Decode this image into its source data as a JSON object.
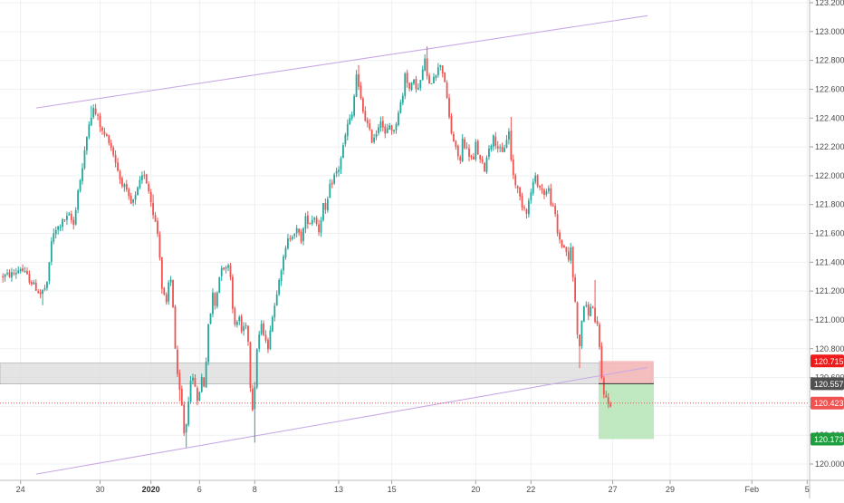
{
  "colors": {
    "up": "#26a69a",
    "down": "#ef5350",
    "channel_line": "#c9a9e6",
    "zone_fill": "#d9d9d9",
    "stop_zone": "#f7b7b7",
    "target_zone": "#b6e5b6",
    "grid": "#eef0f3",
    "axis_text": "#4a4a4a",
    "current_price_line": "#ef5350",
    "badge_red": "#ef1b1b",
    "badge_dark": "#505050",
    "badge_red_price": "#f05252",
    "badge_green": "#1e9e3e"
  },
  "chart_data": {
    "type": "candlestick",
    "title": "",
    "ylim": [
      119.86,
      123.2
    ],
    "y_ticks": [
      "120.000",
      "120.200",
      "120.400",
      "120.600",
      "120.800",
      "121.000",
      "121.200",
      "121.400",
      "121.600",
      "121.800",
      "122.000",
      "122.200",
      "122.400",
      "122.600",
      "122.800",
      "123.000",
      "123.200"
    ],
    "x_ticks": [
      {
        "label": "24",
        "i": 2,
        "bold": false
      },
      {
        "label": "30",
        "i": 38,
        "bold": false
      },
      {
        "label": "2020",
        "i": 61,
        "bold": true
      },
      {
        "label": "6",
        "i": 83,
        "bold": false
      },
      {
        "label": "8",
        "i": 108,
        "bold": false
      },
      {
        "label": "13",
        "i": 146,
        "bold": false
      },
      {
        "label": "15",
        "i": 170,
        "bold": false
      },
      {
        "label": "20",
        "i": 208,
        "bold": false
      },
      {
        "label": "22",
        "i": 233,
        "bold": false
      },
      {
        "label": "27",
        "i": 270,
        "bold": false
      },
      {
        "label": "29",
        "i": 296,
        "bold": false
      },
      {
        "label": "Feb",
        "i": 333,
        "bold": false
      },
      {
        "label": "5",
        "i": 358,
        "bold": false
      }
    ],
    "index_range": [
      -6,
      375
    ],
    "anchors": [
      [
        -6,
        121.3
      ],
      [
        0,
        121.32
      ],
      [
        3,
        121.36
      ],
      [
        8,
        121.26
      ],
      [
        12,
        121.18
      ],
      [
        15,
        121.24
      ],
      [
        17,
        121.55
      ],
      [
        19,
        121.62
      ],
      [
        22,
        121.68
      ],
      [
        25,
        121.72
      ],
      [
        27,
        121.66
      ],
      [
        29,
        121.9
      ],
      [
        31,
        122.05
      ],
      [
        34,
        122.38
      ],
      [
        36,
        122.46
      ],
      [
        38,
        122.4
      ],
      [
        40,
        122.3
      ],
      [
        43,
        122.25
      ],
      [
        46,
        122.1
      ],
      [
        48,
        121.98
      ],
      [
        50,
        121.92
      ],
      [
        53,
        121.8
      ],
      [
        55,
        121.85
      ],
      [
        57,
        121.95
      ],
      [
        59,
        122.02
      ],
      [
        61,
        121.9
      ],
      [
        63,
        121.75
      ],
      [
        65,
        121.6
      ],
      [
        66,
        121.45
      ],
      [
        67,
        121.22
      ],
      [
        69,
        121.1
      ],
      [
        70,
        121.25
      ],
      [
        71,
        121.28
      ],
      [
        72,
        121.1
      ],
      [
        73,
        120.8
      ],
      [
        74,
        120.6
      ],
      [
        76,
        120.4
      ],
      [
        77,
        120.22
      ],
      [
        78,
        120.28
      ],
      [
        79,
        120.45
      ],
      [
        80,
        120.6
      ],
      [
        82,
        120.55
      ],
      [
        83,
        120.42
      ],
      [
        85,
        120.6
      ],
      [
        86,
        120.55
      ],
      [
        87,
        120.72
      ],
      [
        88,
        120.95
      ],
      [
        89,
        121.05
      ],
      [
        90,
        121.18
      ],
      [
        91,
        121.1
      ],
      [
        93,
        121.3
      ],
      [
        94,
        121.38
      ],
      [
        96,
        121.35
      ],
      [
        97,
        121.4
      ],
      [
        98,
        121.3
      ],
      [
        99,
        121.1
      ],
      [
        100,
        120.95
      ],
      [
        102,
        121.02
      ],
      [
        103,
        120.92
      ],
      [
        105,
        120.98
      ],
      [
        106,
        120.85
      ],
      [
        107,
        120.55
      ],
      [
        108,
        120.4
      ],
      [
        109,
        120.55
      ],
      [
        110,
        120.8
      ],
      [
        111,
        120.9
      ],
      [
        112,
        120.95
      ],
      [
        114,
        120.88
      ],
      [
        115,
        120.78
      ],
      [
        116,
        120.95
      ],
      [
        118,
        121.1
      ],
      [
        120,
        121.3
      ],
      [
        122,
        121.42
      ],
      [
        124,
        121.55
      ],
      [
        126,
        121.6
      ],
      [
        128,
        121.62
      ],
      [
        130,
        121.56
      ],
      [
        132,
        121.7
      ],
      [
        134,
        121.68
      ],
      [
        136,
        121.72
      ],
      [
        138,
        121.62
      ],
      [
        140,
        121.8
      ],
      [
        141,
        121.74
      ],
      [
        143,
        121.92
      ],
      [
        145,
        122.0
      ],
      [
        147,
        122.05
      ],
      [
        149,
        122.2
      ],
      [
        151,
        122.35
      ],
      [
        153,
        122.42
      ],
      [
        154,
        122.55
      ],
      [
        155,
        122.7
      ],
      [
        156,
        122.6
      ],
      [
        158,
        122.45
      ],
      [
        160,
        122.35
      ],
      [
        162,
        122.25
      ],
      [
        164,
        122.3
      ],
      [
        166,
        122.4
      ],
      [
        168,
        122.28
      ],
      [
        170,
        122.35
      ],
      [
        172,
        122.3
      ],
      [
        174,
        122.45
      ],
      [
        176,
        122.55
      ],
      [
        177,
        122.72
      ],
      [
        179,
        122.6
      ],
      [
        181,
        122.65
      ],
      [
        183,
        122.6
      ],
      [
        185,
        122.72
      ],
      [
        186,
        122.82
      ],
      [
        187,
        122.68
      ],
      [
        188,
        122.62
      ],
      [
        190,
        122.7
      ],
      [
        192,
        122.74
      ],
      [
        193,
        122.78
      ],
      [
        195,
        122.66
      ],
      [
        196,
        122.52
      ],
      [
        197,
        122.4
      ],
      [
        198,
        122.3
      ],
      [
        200,
        122.18
      ],
      [
        202,
        122.1
      ],
      [
        203,
        122.25
      ],
      [
        205,
        122.18
      ],
      [
        206,
        122.15
      ],
      [
        208,
        122.1
      ],
      [
        209,
        122.22
      ],
      [
        211,
        122.1
      ],
      [
        213,
        122.05
      ],
      [
        215,
        122.2
      ],
      [
        217,
        122.26
      ],
      [
        219,
        122.2
      ],
      [
        221,
        122.15
      ],
      [
        223,
        122.26
      ],
      [
        224,
        122.3
      ],
      [
        225,
        122.12
      ],
      [
        226,
        122.0
      ],
      [
        228,
        121.9
      ],
      [
        230,
        121.8
      ],
      [
        232,
        121.76
      ],
      [
        233,
        121.82
      ],
      [
        235,
        121.95
      ],
      [
        236,
        121.98
      ],
      [
        238,
        121.92
      ],
      [
        240,
        121.88
      ],
      [
        242,
        121.9
      ],
      [
        243,
        121.82
      ],
      [
        245,
        121.72
      ],
      [
        246,
        121.6
      ],
      [
        248,
        121.52
      ],
      [
        250,
        121.48
      ],
      [
        251,
        121.4
      ],
      [
        252,
        121.5
      ],
      [
        253,
        121.3
      ],
      [
        254,
        121.12
      ],
      [
        255,
        120.92
      ],
      [
        256,
        120.8
      ],
      [
        257,
        121.0
      ],
      [
        258,
        121.1
      ],
      [
        259,
        121.08
      ],
      [
        260,
        121.05
      ],
      [
        262,
        121.1
      ],
      [
        263,
        120.98
      ],
      [
        264,
        120.95
      ],
      [
        265,
        120.8
      ],
      [
        266,
        120.6
      ],
      [
        267,
        120.5
      ],
      [
        268,
        120.45
      ],
      [
        269,
        120.42
      ]
    ],
    "hi_spikes": [
      [
        34,
        0.08
      ],
      [
        155,
        0.06
      ],
      [
        186,
        0.06
      ],
      [
        224,
        0.08
      ],
      [
        262,
        0.16
      ],
      [
        62,
        0.05
      ]
    ],
    "lo_spikes": [
      [
        77,
        0.08
      ],
      [
        108,
        0.22
      ],
      [
        12,
        0.06
      ],
      [
        255,
        0.12
      ],
      [
        74,
        0.05
      ]
    ],
    "channel_upper": {
      "x1": 40,
      "y1": 122.47,
      "x2": 715,
      "y2": 123.11
    },
    "channel_lower": {
      "x1": 40,
      "y1": 119.93,
      "x2": 715,
      "y2": 120.67
    },
    "supply_zone": {
      "low": 120.555,
      "high": 120.7
    },
    "position": {
      "entry": 120.557,
      "stop": 120.715,
      "target": 120.173
    },
    "current_price": 120.423,
    "price_badges": [
      {
        "value": "120.715",
        "price": 120.715,
        "color": "badge_red"
      },
      {
        "value": "120.557",
        "price": 120.557,
        "color": "badge_dark"
      },
      {
        "value": "120.423",
        "price": 120.423,
        "color": "badge_red_price"
      },
      {
        "value": "120.173",
        "price": 120.173,
        "color": "badge_green"
      }
    ]
  }
}
